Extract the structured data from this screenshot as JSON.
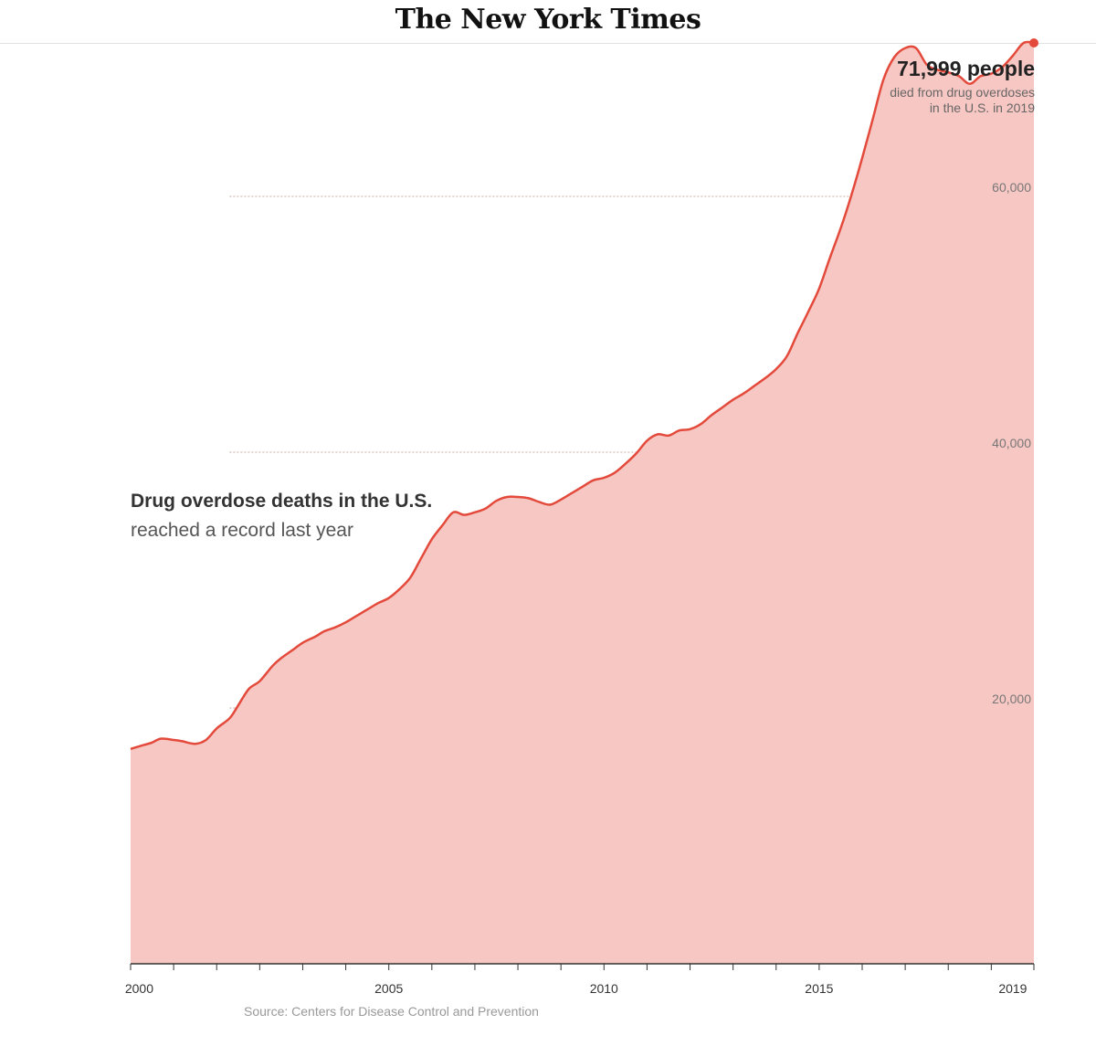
{
  "masthead": {
    "title": "The New York Times"
  },
  "headline": "Drug overdose deaths in the U.S.",
  "subhead": "reached a record last year",
  "annotation": {
    "value": "71,999 people",
    "line1": "died from drug overdoses",
    "line2": "in the U.S. in 2019"
  },
  "source": "Source: Centers for Disease Control and Prevention",
  "colors": {
    "line": "#e34a3b",
    "fill": "#f7c7c3",
    "marker": "#e34a3b",
    "grid": "#c9a9a6"
  },
  "chart_data": {
    "type": "area",
    "title": "Drug overdose deaths in the U.S.",
    "xlabel": "",
    "ylabel": "",
    "ylim": [
      0,
      72500
    ],
    "xlim": [
      1999,
      2019.99
    ],
    "grid": true,
    "y_ticks": [
      20000,
      40000,
      60000
    ],
    "y_tick_labels": [
      "20,000",
      "40,000",
      "60,000"
    ],
    "x_tick_labels": [
      {
        "x": 1999.2,
        "label": "2000"
      },
      {
        "x": 2005,
        "label": "2005"
      },
      {
        "x": 2010,
        "label": "2010"
      },
      {
        "x": 2015,
        "label": "2015"
      },
      {
        "x": 2019.5,
        "label": "2019"
      }
    ],
    "highlight": {
      "x": 2019.99,
      "y": 71999
    },
    "series": [
      {
        "x": [
          1999.0,
          1999.3,
          1999.5,
          1999.7,
          2000.0,
          2000.2,
          2000.5,
          2000.75,
          2001.0,
          2001.3,
          2001.5,
          2001.75,
          2002.0,
          2002.3,
          2002.5,
          2002.75,
          2003.0,
          2003.3,
          2003.5,
          2003.75,
          2004.0,
          2004.25,
          2004.5,
          2004.75,
          2005.0,
          2005.25,
          2005.5,
          2005.75,
          2006.0,
          2006.25,
          2006.5,
          2006.75,
          2007.0,
          2007.25,
          2007.5,
          2007.75,
          2008.0,
          2008.25,
          2008.5,
          2008.75,
          2009.0,
          2009.25,
          2009.5,
          2009.75,
          2010.0,
          2010.25,
          2010.5,
          2010.75,
          2011.0,
          2011.25,
          2011.5,
          2011.75,
          2012.0,
          2012.25,
          2012.5,
          2012.75,
          2013.0,
          2013.25,
          2013.5,
          2013.75,
          2014.0,
          2014.25,
          2014.5,
          2014.75,
          2015.0,
          2015.25,
          2015.5,
          2015.75,
          2016.0,
          2016.25,
          2016.5,
          2016.75,
          2017.0,
          2017.25,
          2017.5,
          2017.75,
          2018.0,
          2018.25,
          2018.5,
          2018.75,
          2019.0,
          2019.25,
          2019.5,
          2019.75,
          2019.99
        ],
        "y": [
          16800,
          17100,
          17300,
          17600,
          17500,
          17400,
          17200,
          17500,
          18400,
          19200,
          20200,
          21500,
          22100,
          23300,
          23900,
          24500,
          25100,
          25600,
          26000,
          26300,
          26700,
          27200,
          27700,
          28200,
          28600,
          29300,
          30200,
          31700,
          33200,
          34300,
          35300,
          35100,
          35300,
          35600,
          36200,
          36500,
          36500,
          36400,
          36100,
          35900,
          36300,
          36800,
          37300,
          37800,
          38000,
          38400,
          39100,
          39900,
          40900,
          41400,
          41300,
          41700,
          41800,
          42200,
          42900,
          43500,
          44100,
          44600,
          45200,
          45800,
          46500,
          47500,
          49300,
          51000,
          52800,
          55200,
          57500,
          60100,
          63000,
          66100,
          69200,
          70900,
          71600,
          71600,
          70300,
          69900,
          69700,
          69400,
          68800,
          69400,
          69600,
          70100,
          71000,
          71999,
          71999
        ]
      }
    ]
  }
}
